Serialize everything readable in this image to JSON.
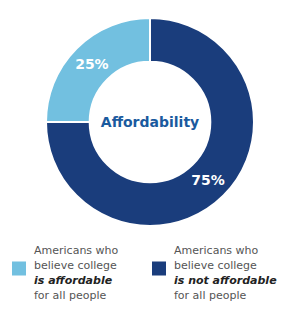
{
  "chart_data": {
    "type": "pie",
    "title": "Affordability",
    "categories": [
      [
        "Americans who",
        "believe college",
        "is not affordable",
        "for all people"
      ],
      [
        "Americans who",
        "believe college",
        "is affordable",
        "for all people"
      ]
    ],
    "values": [
      75,
      25
    ],
    "value_labels": [
      "75%",
      "25%"
    ],
    "data_labels": true,
    "colors": [
      "#1a3d7c",
      "#72c0e0"
    ]
  }
}
